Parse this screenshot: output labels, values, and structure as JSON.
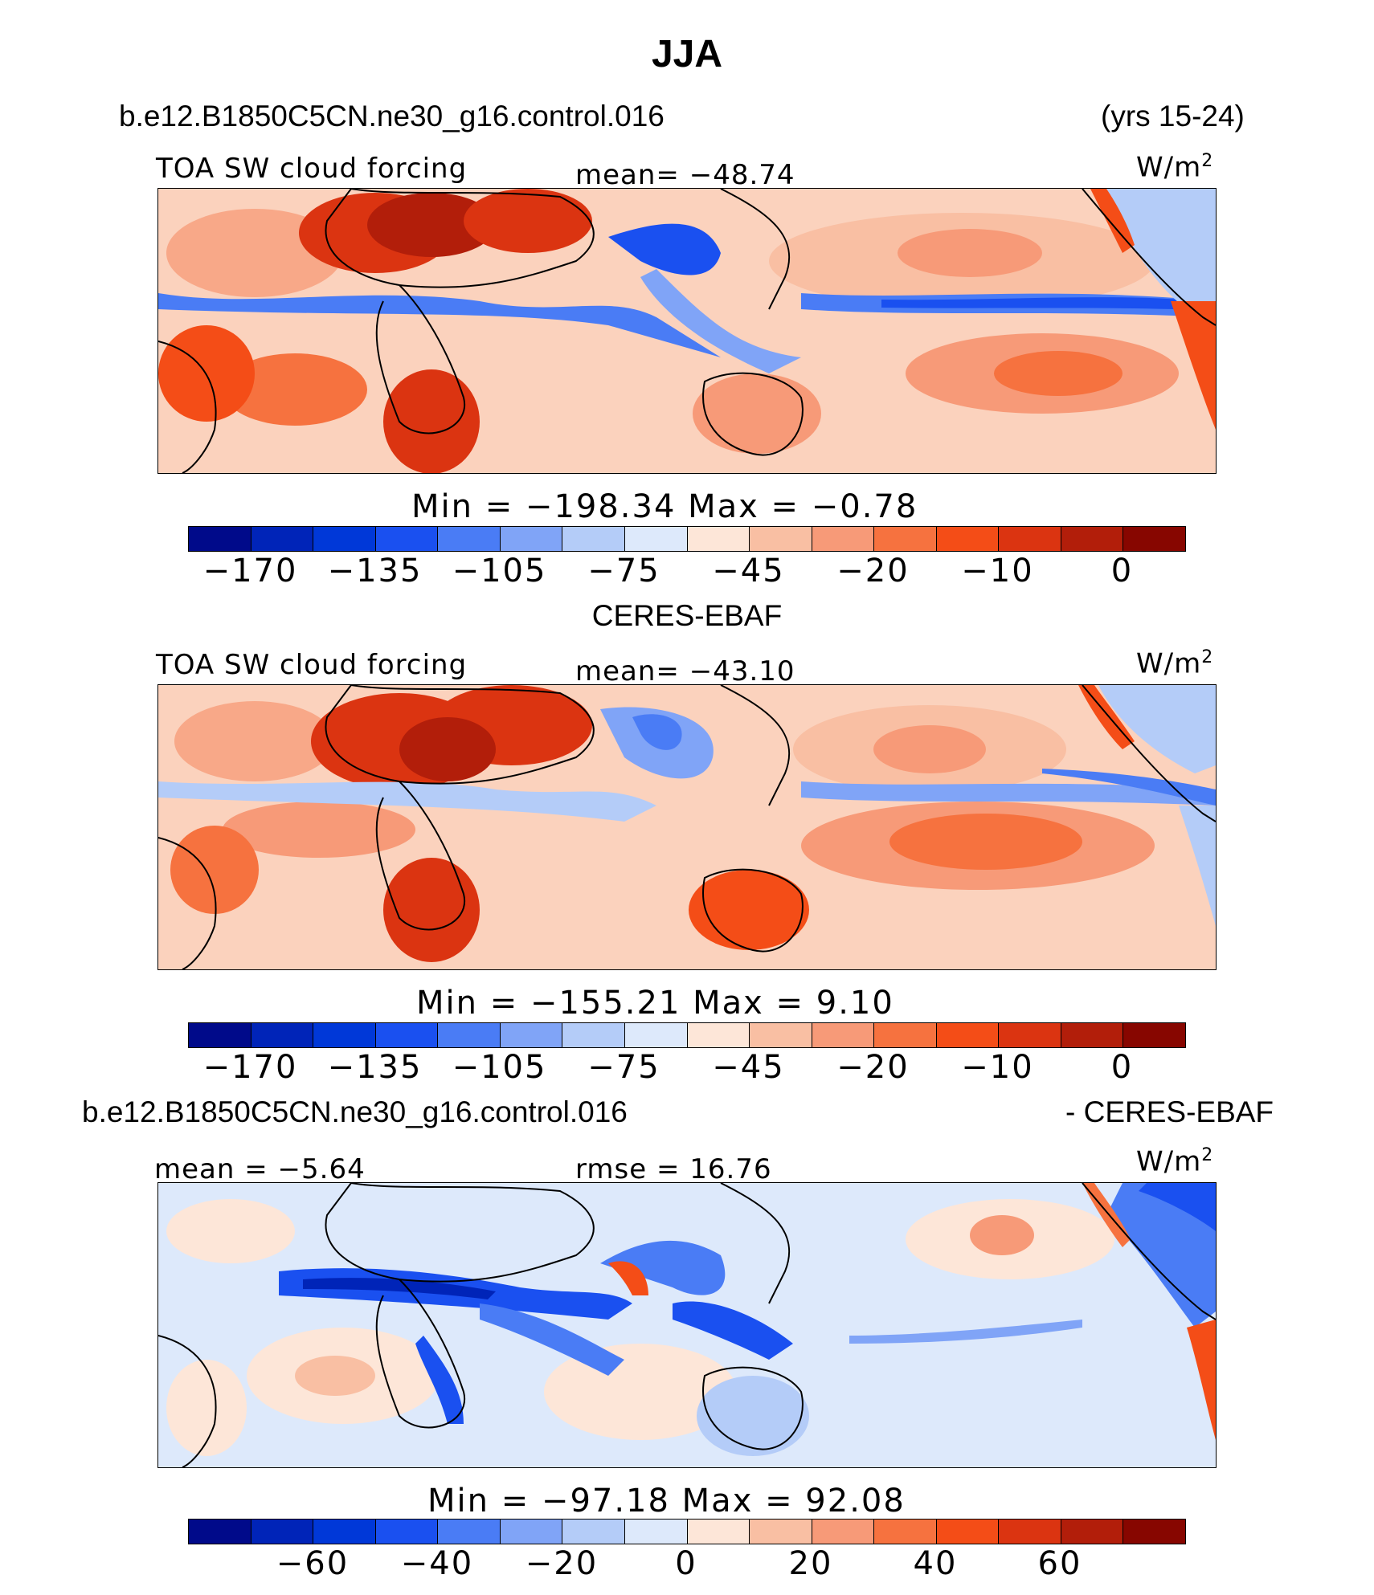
{
  "page_title": "JJA",
  "header": {
    "case": "b.e12.B1850C5CN.ne30_g16.control.016",
    "years": "(yrs 15-24)"
  },
  "panels": [
    {
      "id": "model",
      "label": "TOA SW cloud forcing",
      "mean_text": "mean=  −48.74",
      "units_base": "W/m",
      "units_exp": "2",
      "minmax_text": "Min  =  −198.34  Max  =    −0.78",
      "colorbar": {
        "colors": [
          "#000a8a",
          "#0024b8",
          "#0038d8",
          "#1a50f0",
          "#4a7cf5",
          "#80a4f7",
          "#b4ccf8",
          "#dde9fb",
          "#fde6d8",
          "#f9bfa3",
          "#f79a78",
          "#f6723f",
          "#f44d17",
          "#db3411",
          "#b21e0a",
          "#870600"
        ],
        "tick_labels": [
          "−170",
          "−135",
          "−105",
          "−75",
          "−45",
          "−20",
          "−10",
          "0"
        ]
      }
    },
    {
      "id": "obs",
      "subtitle": "CERES-EBAF",
      "label": "TOA SW cloud forcing",
      "mean_text": "mean=  −43.10",
      "units_base": "W/m",
      "units_exp": "2",
      "minmax_text": "Min  =  −155.21  Max  =     9.10",
      "colorbar": {
        "colors": [
          "#000a8a",
          "#0024b8",
          "#0038d8",
          "#1a50f0",
          "#4a7cf5",
          "#80a4f7",
          "#b4ccf8",
          "#dde9fb",
          "#fde6d8",
          "#f9bfa3",
          "#f79a78",
          "#f6723f",
          "#f44d17",
          "#db3411",
          "#b21e0a",
          "#870600"
        ],
        "tick_labels": [
          "−170",
          "−135",
          "−105",
          "−75",
          "−45",
          "−20",
          "−10",
          "0"
        ]
      }
    },
    {
      "id": "diff",
      "header_left": "b.e12.B1850C5CN.ne30_g16.control.016",
      "header_right": "- CERES-EBAF",
      "mean_text": "mean  =   −5.64",
      "rmse_text": "rmse  =   16.76",
      "units_base": "W/m",
      "units_exp": "2",
      "minmax_text": "Min  =  −97.18  Max  =   92.08",
      "colorbar": {
        "colors": [
          "#000a8a",
          "#0024b8",
          "#0038d8",
          "#1a50f0",
          "#4a7cf5",
          "#80a4f7",
          "#b4ccf8",
          "#dde9fb",
          "#fde6d8",
          "#f9bfa3",
          "#f79a78",
          "#f6723f",
          "#f44d17",
          "#db3411",
          "#b21e0a",
          "#870600"
        ],
        "tick_labels": [
          "−60",
          "−40",
          "−20",
          "0",
          "20",
          "40",
          "60"
        ]
      }
    }
  ],
  "chart_data": [
    {
      "type": "heatmap",
      "title": "TOA SW cloud forcing",
      "subtitle": "b.e12.B1850C5CN.ne30_g16.control.016 (yrs 15-24)",
      "season": "JJA",
      "units": "W/m2",
      "mean": -48.74,
      "min": -198.34,
      "max": -0.78,
      "contour_levels": [
        -170,
        -155,
        -135,
        -120,
        -105,
        -90,
        -75,
        -60,
        -45,
        -30,
        -20,
        -15,
        -10,
        -5,
        0
      ],
      "colorbar_ticks": [
        -170,
        -135,
        -105,
        -75,
        -45,
        -20,
        -10,
        0
      ]
    },
    {
      "type": "heatmap",
      "title": "TOA SW cloud forcing",
      "subtitle": "CERES-EBAF",
      "season": "JJA",
      "units": "W/m2",
      "mean": -43.1,
      "min": -155.21,
      "max": 9.1,
      "contour_levels": [
        -170,
        -155,
        -135,
        -120,
        -105,
        -90,
        -75,
        -60,
        -45,
        -30,
        -20,
        -15,
        -10,
        -5,
        0
      ],
      "colorbar_ticks": [
        -170,
        -135,
        -105,
        -75,
        -45,
        -20,
        -10,
        0
      ]
    },
    {
      "type": "heatmap",
      "title": "b.e12.B1850C5CN.ne30_g16.control.016 - CERES-EBAF",
      "season": "JJA",
      "units": "W/m2",
      "mean": -5.64,
      "rmse": 16.76,
      "min": -97.18,
      "max": 92.08,
      "contour_levels": [
        -70,
        -60,
        -50,
        -40,
        -30,
        -20,
        -10,
        0,
        10,
        20,
        30,
        40,
        50,
        60,
        70
      ],
      "colorbar_ticks": [
        -60,
        -40,
        -20,
        0,
        20,
        40,
        60
      ]
    }
  ]
}
